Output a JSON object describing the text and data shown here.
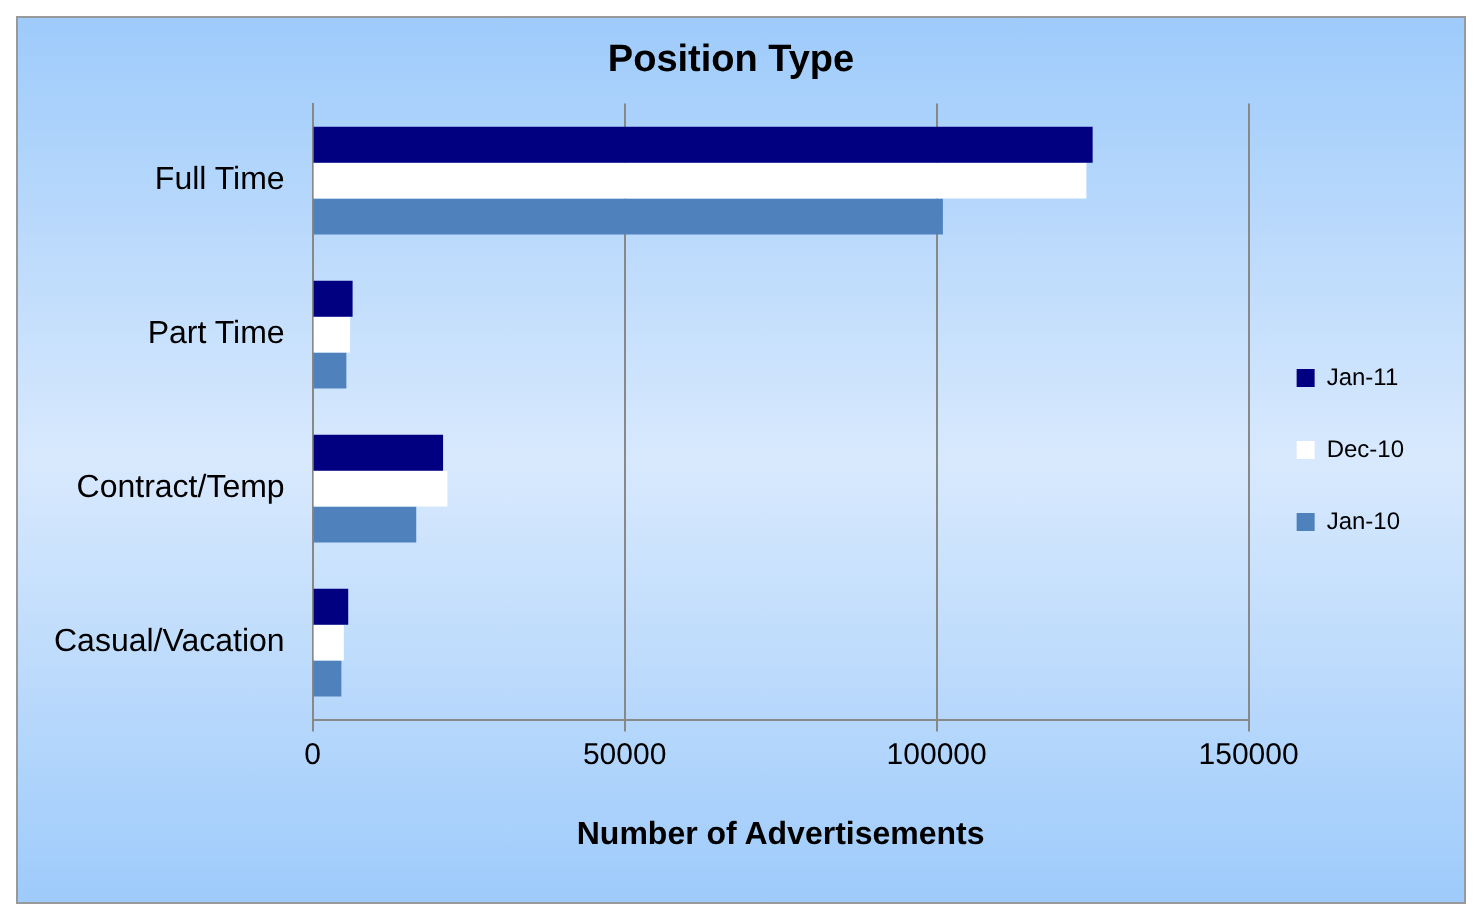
{
  "chart_data": {
    "type": "bar",
    "orientation": "horizontal",
    "title": "Position Type",
    "xlabel": "Number of Advertisements",
    "categories": [
      "Full Time",
      "Part Time",
      "Contract/Temp",
      "Casual/Vacation"
    ],
    "series": [
      {
        "name": "Jan-11",
        "color": "#000080",
        "values": [
          125000,
          6400,
          20900,
          5700
        ]
      },
      {
        "name": "Dec-10",
        "color": "#ffffff",
        "values": [
          124000,
          6000,
          21600,
          5000
        ]
      },
      {
        "name": "Jan-10",
        "color": "#4f81bd",
        "values": [
          101000,
          5400,
          16600,
          4600
        ]
      }
    ],
    "xlim": [
      0,
      150000
    ],
    "xticks": [
      0,
      50000,
      100000,
      150000
    ],
    "grid": "x",
    "legend": "right"
  }
}
